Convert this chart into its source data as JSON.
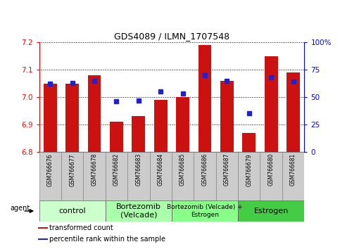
{
  "title": "GDS4089 / ILMN_1707548",
  "samples": [
    "GSM766676",
    "GSM766677",
    "GSM766678",
    "GSM766682",
    "GSM766683",
    "GSM766684",
    "GSM766685",
    "GSM766686",
    "GSM766687",
    "GSM766679",
    "GSM766680",
    "GSM766681"
  ],
  "bar_values": [
    7.05,
    7.05,
    7.08,
    6.91,
    6.93,
    6.99,
    7.0,
    7.19,
    7.06,
    6.87,
    7.15,
    7.09
  ],
  "percentile_values": [
    62,
    63,
    65,
    46,
    47,
    55,
    53,
    70,
    65,
    35,
    68,
    64
  ],
  "bar_color": "#cc1111",
  "percentile_color": "#2222cc",
  "ylim_left": [
    6.8,
    7.2
  ],
  "ylim_right": [
    0,
    100
  ],
  "yticks_left": [
    6.8,
    6.9,
    7.0,
    7.1,
    7.2
  ],
  "yticks_right": [
    0,
    25,
    50,
    75,
    100
  ],
  "yticklabels_right": [
    "0",
    "25",
    "50",
    "75",
    "100%"
  ],
  "groups": [
    {
      "label": "control",
      "start": 0,
      "end": 3,
      "color": "#ccffcc",
      "fontsize": 8
    },
    {
      "label": "Bortezomib\n(Velcade)",
      "start": 3,
      "end": 6,
      "color": "#aaffaa",
      "fontsize": 8
    },
    {
      "label": "Bortezomib (Velcade) +\nEstrogen",
      "start": 6,
      "end": 9,
      "color": "#88ff88",
      "fontsize": 6.5
    },
    {
      "label": "Estrogen",
      "start": 9,
      "end": 12,
      "color": "#44cc44",
      "fontsize": 8
    }
  ],
  "legend_labels": [
    "transformed count",
    "percentile rank within the sample"
  ],
  "legend_colors": [
    "#cc1111",
    "#2222cc"
  ],
  "agent_label": "agent",
  "bar_width": 0.6,
  "sample_cell_color": "#cccccc",
  "background_color": "#ffffff"
}
